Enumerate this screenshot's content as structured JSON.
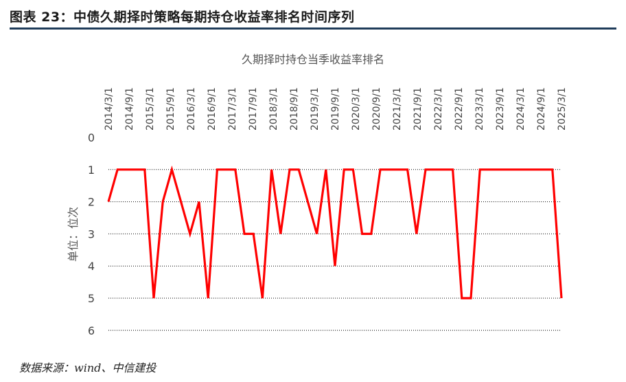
{
  "figure": {
    "title": "图表 23：中债久期择时策略每期持仓收益率排名时间序列",
    "source": "数据来源：wind、中信建投"
  },
  "chart_data": {
    "type": "line",
    "title": "久期择时持仓当季收益率排名",
    "ylabel": "单位：位次",
    "xlabel": "",
    "ylim": [
      0,
      6
    ],
    "y_inverted": true,
    "grid": true,
    "x_tick_labels": [
      "2014/3/1",
      "2014/9/1",
      "2015/3/1",
      "2015/9/1",
      "2016/3/1",
      "2016/9/1",
      "2017/3/1",
      "2017/9/1",
      "2018/3/1",
      "2018/9/1",
      "2019/3/1",
      "2019/9/1",
      "2020/3/1",
      "2020/9/1",
      "2021/3/1",
      "2021/9/1",
      "2022/3/1",
      "2022/9/1",
      "2023/3/1",
      "2023/9/1",
      "2024/3/1",
      "2024/9/1",
      "2025/3/1"
    ],
    "y_tick_labels": [
      "0",
      "1",
      "2",
      "3",
      "4",
      "5",
      "6"
    ],
    "line_color": "#ff0000",
    "series": [
      {
        "name": "",
        "values": [
          2,
          1,
          1,
          1,
          1,
          5,
          2,
          1,
          2,
          3,
          2,
          5,
          1,
          1,
          1,
          3,
          3,
          5,
          1,
          3,
          1,
          1,
          2,
          3,
          1,
          4,
          1,
          1,
          3,
          3,
          1,
          1,
          1,
          1,
          3,
          1,
          1,
          1,
          1,
          5,
          5,
          1,
          1,
          1,
          1,
          1,
          1,
          1,
          1,
          1,
          5
        ]
      }
    ]
  }
}
